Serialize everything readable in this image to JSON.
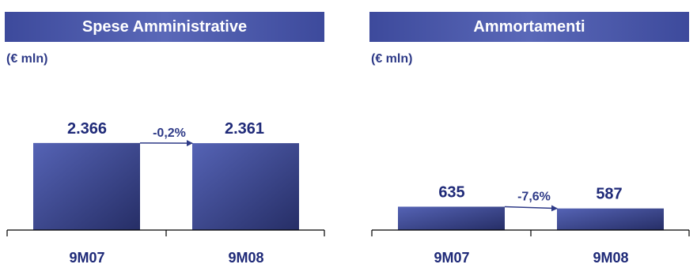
{
  "chart_data": [
    {
      "type": "bar",
      "title": "Spese Amministrative",
      "unit_label": "(€ mln)",
      "categories": [
        "9M07",
        "9M08"
      ],
      "values": [
        2366,
        2361
      ],
      "value_labels": [
        "2.366",
        "2.361"
      ],
      "change_label": "-0,2%",
      "ylim": [
        0,
        2900
      ]
    },
    {
      "type": "bar",
      "title": "Ammortamenti",
      "unit_label": "(€ mln)",
      "categories": [
        "9M07",
        "9M08"
      ],
      "values": [
        635,
        587
      ],
      "value_labels": [
        "635",
        "587"
      ],
      "change_label": "-7,6%",
      "ylim": [
        0,
        2900
      ]
    }
  ],
  "colors": {
    "header_bg": "#4a58a8",
    "bar_light": "#5563b5",
    "bar_dark": "#262e66",
    "text_dark": "#1f2a78",
    "arrow": "#2e3a87",
    "axis": "#000000"
  }
}
